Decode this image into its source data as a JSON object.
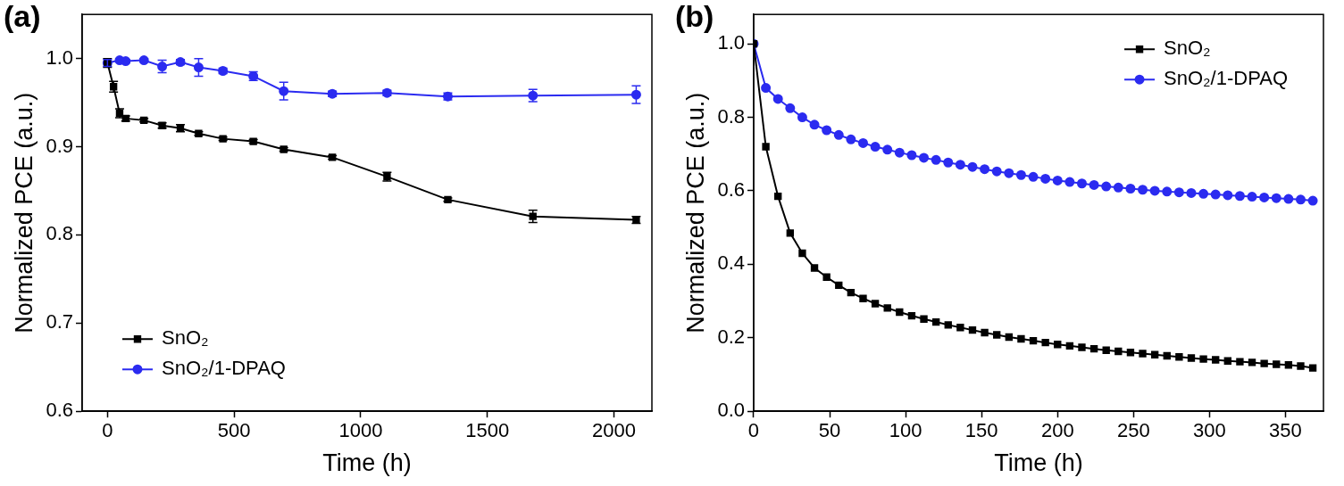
{
  "chart_data": [
    {
      "type": "line",
      "title": "(a)",
      "x_label": "Time (h)",
      "y_label": "Normalized PCE (a.u.)",
      "xlim": [
        -100,
        2150
      ],
      "xticks": [
        0,
        500,
        1000,
        1500,
        2000
      ],
      "ylim": [
        0.6,
        1.05
      ],
      "yticks": [
        0.6,
        0.7,
        0.8,
        0.9,
        {
          "value": 1,
          "label": "1.0"
        }
      ],
      "grid": false,
      "legend": "lower left",
      "series": [
        {
          "name": "SnO₂",
          "color": "#000000",
          "marker": "square",
          "line_style": "solid",
          "x": [
            0,
            24,
            48,
            72,
            144,
            216,
            288,
            360,
            456,
            576,
            696,
            888,
            1104,
            1344,
            1680,
            2088
          ],
          "values": [
            0.995,
            0.968,
            0.938,
            0.932,
            0.93,
            0.924,
            0.921,
            0.915,
            0.909,
            0.906,
            0.897,
            0.888,
            0.866,
            0.84,
            0.821,
            0.817
          ],
          "errors": [
            0.005,
            0.006,
            0.005,
            0.003,
            0.002,
            0.003,
            0.004,
            0.002,
            0.002,
            0.002,
            0.002,
            0.002,
            0.005,
            0.002,
            0.007,
            0.004
          ]
        },
        {
          "name": "SnO₂/1-DPAQ",
          "color": "#2b2bf0",
          "marker": "circle",
          "line_style": "solid",
          "x": [
            0,
            48,
            72,
            144,
            216,
            288,
            360,
            456,
            576,
            696,
            888,
            1104,
            1344,
            1680,
            2088
          ],
          "values": [
            0.995,
            0.998,
            0.997,
            0.998,
            0.991,
            0.996,
            0.99,
            0.986,
            0.98,
            0.963,
            0.96,
            0.961,
            0.957,
            0.958,
            0.959
          ],
          "errors": [
            0.004,
            0.002,
            0.002,
            0.002,
            0.007,
            0.003,
            0.01,
            0.003,
            0.005,
            0.01,
            0.003,
            0.003,
            0.004,
            0.007,
            0.01
          ]
        }
      ]
    },
    {
      "type": "line",
      "title": "(b)",
      "x_label": "Time (h)",
      "y_label": "Normalized PCE (a.u.)",
      "xlim": [
        0,
        375
      ],
      "xticks": [
        0,
        50,
        100,
        150,
        200,
        250,
        300,
        350
      ],
      "ylim": [
        0,
        1.08
      ],
      "yticks": [
        {
          "value": 0,
          "label": "0.0"
        },
        0.2,
        0.4,
        0.6,
        0.8,
        {
          "value": 1,
          "label": "1.0"
        }
      ],
      "grid": false,
      "legend": "upper right",
      "x": [
        0,
        8,
        16,
        24,
        32,
        40,
        48,
        56,
        64,
        72,
        80,
        88,
        96,
        104,
        112,
        120,
        128,
        136,
        144,
        152,
        160,
        168,
        176,
        184,
        192,
        200,
        208,
        216,
        224,
        232,
        240,
        248,
        256,
        264,
        272,
        280,
        288,
        296,
        304,
        312,
        320,
        328,
        336,
        344,
        352,
        360,
        368
      ],
      "series": [
        {
          "name": "SnO₂",
          "color": "#000000",
          "marker": "square",
          "line_style": "solid",
          "values": [
            1.0,
            0.72,
            0.585,
            0.485,
            0.43,
            0.39,
            0.365,
            0.343,
            0.323,
            0.307,
            0.293,
            0.281,
            0.27,
            0.26,
            0.251,
            0.243,
            0.235,
            0.228,
            0.221,
            0.214,
            0.208,
            0.202,
            0.197,
            0.192,
            0.187,
            0.182,
            0.178,
            0.174,
            0.17,
            0.166,
            0.163,
            0.16,
            0.157,
            0.154,
            0.151,
            0.148,
            0.145,
            0.142,
            0.14,
            0.137,
            0.135,
            0.133,
            0.13,
            0.128,
            0.126,
            0.123,
            0.118
          ]
        },
        {
          "name": "SnO₂/1-DPAQ",
          "color": "#2b2bf0",
          "marker": "circle",
          "line_style": "solid",
          "values": [
            1.0,
            0.88,
            0.85,
            0.825,
            0.8,
            0.78,
            0.765,
            0.752,
            0.74,
            0.73,
            0.72,
            0.712,
            0.704,
            0.697,
            0.69,
            0.684,
            0.677,
            0.671,
            0.665,
            0.659,
            0.653,
            0.648,
            0.643,
            0.638,
            0.633,
            0.628,
            0.624,
            0.62,
            0.616,
            0.612,
            0.609,
            0.606,
            0.603,
            0.6,
            0.598,
            0.596,
            0.594,
            0.592,
            0.59,
            0.588,
            0.586,
            0.584,
            0.582,
            0.58,
            0.578,
            0.576,
            0.573
          ]
        }
      ]
    }
  ]
}
